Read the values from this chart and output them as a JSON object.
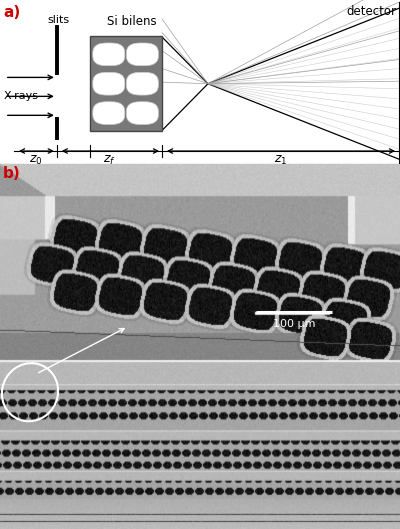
{
  "fig_width": 4.0,
  "fig_height": 5.29,
  "dpi": 100,
  "bg_color": "#ffffff",
  "label_a": "a)",
  "label_b": "b)",
  "label_a_color": "#cc0000",
  "label_b_color": "#cc0000",
  "panel_a_title": "detector",
  "panel_a_xrays": "X-rays",
  "panel_a_slits": "slits",
  "panel_a_bilens": "Si bilens",
  "panel_a_z0": "$z_0$",
  "panel_a_zf": "$z_f$",
  "panel_a_z1": "$z_1$",
  "lens_gray": "#787878",
  "scale_bar_text": "100 μm"
}
